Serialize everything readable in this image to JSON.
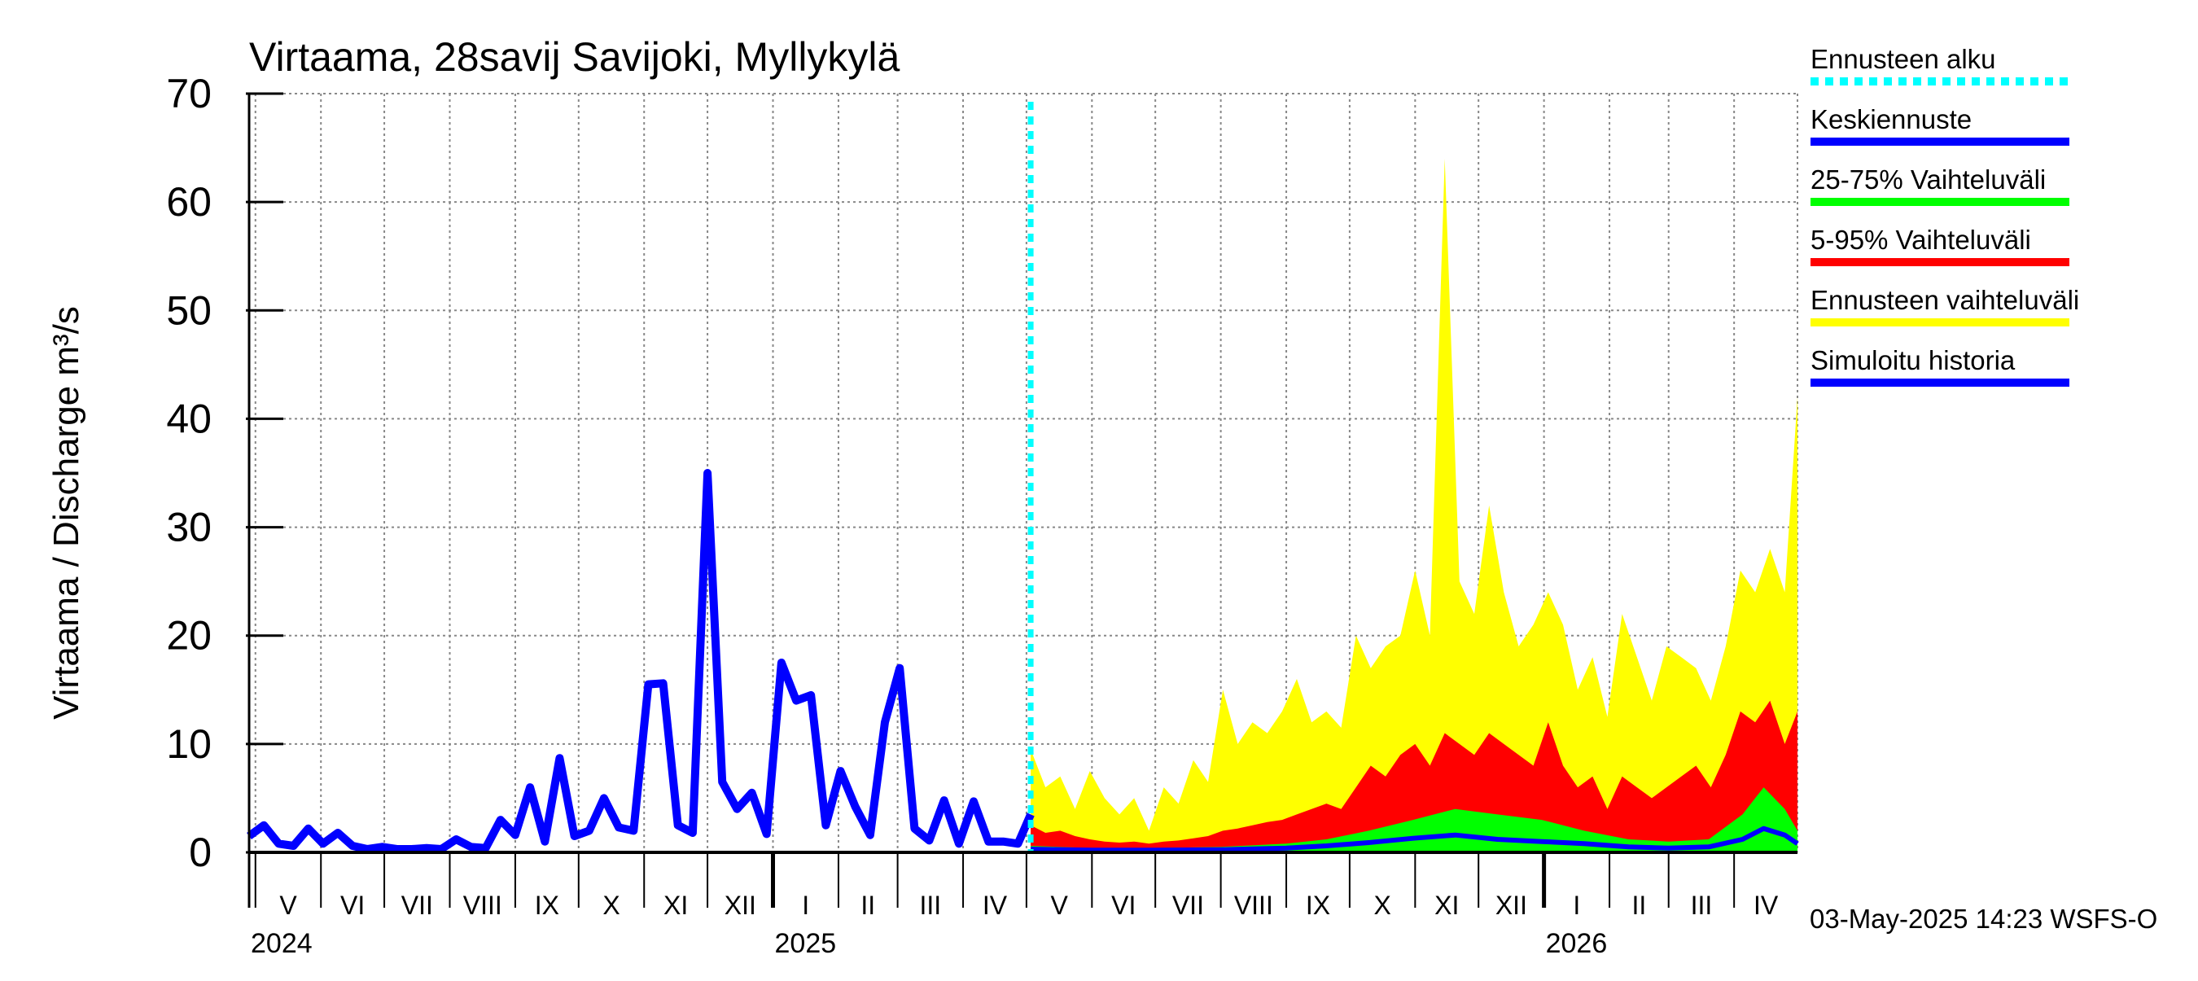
{
  "chart_data": {
    "type": "area",
    "title": "Virtaama, 28savij Savijoki, Myllykylä",
    "ylabel": "Virtaama / Discharge    m³/s",
    "ylim": [
      0,
      70
    ],
    "yticks": [
      0,
      10,
      20,
      30,
      40,
      50,
      60,
      70
    ],
    "xlim": [
      "2024-04-28",
      "2026-05-01"
    ],
    "grid": true,
    "legend_position": "right",
    "timestamp": "03-May-2025 14:23 WSFS-O",
    "years": [
      {
        "label": "2024",
        "date": "2024-05-01"
      },
      {
        "label": "2025",
        "date": "2025-01-01"
      },
      {
        "label": "2026",
        "date": "2026-01-01"
      }
    ],
    "months": [
      {
        "label": "V",
        "start": "2024-05-01"
      },
      {
        "label": "VI",
        "start": "2024-06-01"
      },
      {
        "label": "VII",
        "start": "2024-07-01"
      },
      {
        "label": "VIII",
        "start": "2024-08-01"
      },
      {
        "label": "IX",
        "start": "2024-09-01"
      },
      {
        "label": "X",
        "start": "2024-10-01"
      },
      {
        "label": "XI",
        "start": "2024-11-01"
      },
      {
        "label": "XII",
        "start": "2024-12-01"
      },
      {
        "label": "I",
        "start": "2025-01-01"
      },
      {
        "label": "II",
        "start": "2025-02-01"
      },
      {
        "label": "III",
        "start": "2025-03-01"
      },
      {
        "label": "IV",
        "start": "2025-04-01"
      },
      {
        "label": "V",
        "start": "2025-05-01"
      },
      {
        "label": "VI",
        "start": "2025-06-01"
      },
      {
        "label": "VII",
        "start": "2025-07-01"
      },
      {
        "label": "VIII",
        "start": "2025-08-01"
      },
      {
        "label": "IX",
        "start": "2025-09-01"
      },
      {
        "label": "X",
        "start": "2025-10-01"
      },
      {
        "label": "XI",
        "start": "2025-11-01"
      },
      {
        "label": "XII",
        "start": "2025-12-01"
      },
      {
        "label": "I",
        "start": "2026-01-01"
      },
      {
        "label": "II",
        "start": "2026-02-01"
      },
      {
        "label": "III",
        "start": "2026-03-01"
      },
      {
        "label": "IV",
        "start": "2026-04-01"
      }
    ],
    "month_ends": [
      "2026-05-01"
    ],
    "forecast_start": "2025-05-03",
    "legend": [
      {
        "key": "forecast_start",
        "label": "Ennusteen alku",
        "color": "#00ffff",
        "dashed": true
      },
      {
        "key": "mean",
        "label": "Keskiennuste",
        "color": "#0000ff"
      },
      {
        "key": "p25_75",
        "label": "25-75% Vaihteluväli",
        "color": "#00ff00"
      },
      {
        "key": "p5_95",
        "label": "5-95% Vaihteluväli",
        "color": "#ff0000"
      },
      {
        "key": "range",
        "label": "Ennusteen vaihteluväli",
        "color": "#ffff00"
      },
      {
        "key": "history",
        "label": "Simuloitu historia",
        "color": "#0000ff"
      }
    ],
    "series": [
      {
        "key": "history",
        "x": [
          "2024-04-28",
          "2024-05-05",
          "2024-05-12",
          "2024-05-19",
          "2024-05-26",
          "2024-06-02",
          "2024-06-09",
          "2024-06-16",
          "2024-06-23",
          "2024-06-30",
          "2024-07-07",
          "2024-07-14",
          "2024-07-21",
          "2024-07-28",
          "2024-08-04",
          "2024-08-11",
          "2024-08-18",
          "2024-08-25",
          "2024-09-01",
          "2024-09-08",
          "2024-09-15",
          "2024-09-22",
          "2024-09-29",
          "2024-10-06",
          "2024-10-13",
          "2024-10-20",
          "2024-10-27",
          "2024-11-03",
          "2024-11-10",
          "2024-11-17",
          "2024-11-24",
          "2024-12-01",
          "2024-12-08",
          "2024-12-15",
          "2024-12-22",
          "2024-12-29",
          "2025-01-05",
          "2025-01-12",
          "2025-01-19",
          "2025-01-26",
          "2025-02-02",
          "2025-02-09",
          "2025-02-16",
          "2025-02-23",
          "2025-03-02",
          "2025-03-09",
          "2025-03-16",
          "2025-03-23",
          "2025-03-30",
          "2025-04-06",
          "2025-04-13",
          "2025-04-20",
          "2025-04-27",
          "2025-05-03"
        ],
        "y": [
          1.5,
          2.5,
          0.8,
          0.6,
          2.2,
          0.8,
          1.8,
          0.6,
          0.3,
          0.5,
          0.3,
          0.3,
          0.4,
          0.3,
          1.2,
          0.5,
          0.4,
          3.0,
          1.6,
          6.0,
          1.0,
          8.7,
          1.5,
          2.0,
          5.0,
          2.3,
          2.0,
          15.5,
          15.6,
          2.5,
          1.8,
          35.0,
          6.5,
          4.0,
          5.5,
          1.7,
          17.5,
          14.0,
          14.5,
          2.5,
          7.5,
          4.2,
          1.6,
          12.0,
          17.0,
          2.2,
          1.1,
          4.8,
          0.8,
          4.7,
          1.0,
          1.0,
          0.8,
          3.5
        ]
      },
      {
        "key": "range",
        "x": [
          "2025-05-03",
          "2025-05-10",
          "2025-05-17",
          "2025-05-24",
          "2025-05-31",
          "2025-06-07",
          "2025-06-14",
          "2025-06-21",
          "2025-06-28",
          "2025-07-05",
          "2025-07-12",
          "2025-07-19",
          "2025-07-26",
          "2025-08-02",
          "2025-08-09",
          "2025-08-16",
          "2025-08-23",
          "2025-08-30",
          "2025-09-06",
          "2025-09-13",
          "2025-09-20",
          "2025-09-27",
          "2025-10-04",
          "2025-10-11",
          "2025-10-18",
          "2025-10-25",
          "2025-11-01",
          "2025-11-08",
          "2025-11-15",
          "2025-11-22",
          "2025-11-29",
          "2025-12-06",
          "2025-12-13",
          "2025-12-20",
          "2025-12-27",
          "2026-01-03",
          "2026-01-10",
          "2026-01-17",
          "2026-01-24",
          "2026-01-31",
          "2026-02-07",
          "2026-02-14",
          "2026-02-21",
          "2026-02-28",
          "2026-03-07",
          "2026-03-14",
          "2026-03-21",
          "2026-03-28",
          "2026-04-04",
          "2026-04-11",
          "2026-04-18",
          "2026-04-25",
          "2026-05-01"
        ],
        "y": [
          9.5,
          6.0,
          7.0,
          4.0,
          7.5,
          5.0,
          3.5,
          5.0,
          2.0,
          6.0,
          4.5,
          8.5,
          6.5,
          15.0,
          10.0,
          12.0,
          11.0,
          13.0,
          16.0,
          12.0,
          13.0,
          11.5,
          20.0,
          17.0,
          19.0,
          20.0,
          26.0,
          20.0,
          64.0,
          25.0,
          22.0,
          32.0,
          24.0,
          19.0,
          21.0,
          24.0,
          21.0,
          15.0,
          18.0,
          12.5,
          22.0,
          18.0,
          14.0,
          19.0,
          18.0,
          17.0,
          14.0,
          19.0,
          26.0,
          24.0,
          28.0,
          24.0,
          42.0
        ]
      },
      {
        "key": "p5_95",
        "x": [
          "2025-05-03",
          "2025-05-10",
          "2025-05-17",
          "2025-05-24",
          "2025-05-31",
          "2025-06-07",
          "2025-06-14",
          "2025-06-21",
          "2025-06-28",
          "2025-07-05",
          "2025-07-12",
          "2025-07-19",
          "2025-07-26",
          "2025-08-02",
          "2025-08-09",
          "2025-08-16",
          "2025-08-23",
          "2025-08-30",
          "2025-09-06",
          "2025-09-13",
          "2025-09-20",
          "2025-09-27",
          "2025-10-04",
          "2025-10-11",
          "2025-10-18",
          "2025-10-25",
          "2025-11-01",
          "2025-11-08",
          "2025-11-15",
          "2025-11-22",
          "2025-11-29",
          "2025-12-06",
          "2025-12-13",
          "2025-12-20",
          "2025-12-27",
          "2026-01-03",
          "2026-01-10",
          "2026-01-17",
          "2026-01-24",
          "2026-01-31",
          "2026-02-07",
          "2026-02-14",
          "2026-02-21",
          "2026-02-28",
          "2026-03-07",
          "2026-03-14",
          "2026-03-21",
          "2026-03-28",
          "2026-04-04",
          "2026-04-11",
          "2026-04-18",
          "2026-04-25",
          "2026-05-01"
        ],
        "y": [
          2.5,
          1.8,
          2.0,
          1.5,
          1.2,
          1.0,
          0.9,
          1.0,
          0.8,
          1.0,
          1.1,
          1.3,
          1.5,
          2.0,
          2.2,
          2.5,
          2.8,
          3.0,
          3.5,
          4.0,
          4.5,
          4.0,
          6.0,
          8.0,
          7.0,
          9.0,
          10.0,
          8.0,
          11.0,
          10.0,
          9.0,
          11.0,
          10.0,
          9.0,
          8.0,
          12.0,
          8.0,
          6.0,
          7.0,
          4.0,
          7.0,
          6.0,
          5.0,
          6.0,
          7.0,
          8.0,
          6.0,
          9.0,
          13.0,
          12.0,
          14.0,
          10.0,
          13.0
        ]
      },
      {
        "key": "p25_75",
        "x": [
          "2025-05-03",
          "2025-06-01",
          "2025-07-01",
          "2025-08-01",
          "2025-09-01",
          "2025-09-20",
          "2025-10-10",
          "2025-10-31",
          "2025-11-20",
          "2025-12-10",
          "2025-12-31",
          "2026-01-20",
          "2026-02-10",
          "2026-03-01",
          "2026-03-20",
          "2026-04-05",
          "2026-04-15",
          "2026-04-25",
          "2026-05-01"
        ],
        "y": [
          0.6,
          0.4,
          0.4,
          0.5,
          0.8,
          1.2,
          2.0,
          3.0,
          4.0,
          3.5,
          3.0,
          2.0,
          1.2,
          1.0,
          1.2,
          3.5,
          6.0,
          4.0,
          2.0
        ]
      },
      {
        "key": "mean",
        "x": [
          "2025-05-03",
          "2025-06-01",
          "2025-07-01",
          "2025-08-01",
          "2025-09-01",
          "2025-09-20",
          "2025-10-10",
          "2025-10-31",
          "2025-11-20",
          "2025-12-10",
          "2025-12-31",
          "2026-01-20",
          "2026-02-10",
          "2026-03-01",
          "2026-03-20",
          "2026-04-05",
          "2026-04-15",
          "2026-04-25",
          "2026-05-01"
        ],
        "y": [
          0.3,
          0.2,
          0.2,
          0.25,
          0.4,
          0.6,
          0.9,
          1.3,
          1.6,
          1.2,
          1.0,
          0.8,
          0.5,
          0.4,
          0.5,
          1.2,
          2.2,
          1.6,
          0.8
        ]
      }
    ]
  }
}
